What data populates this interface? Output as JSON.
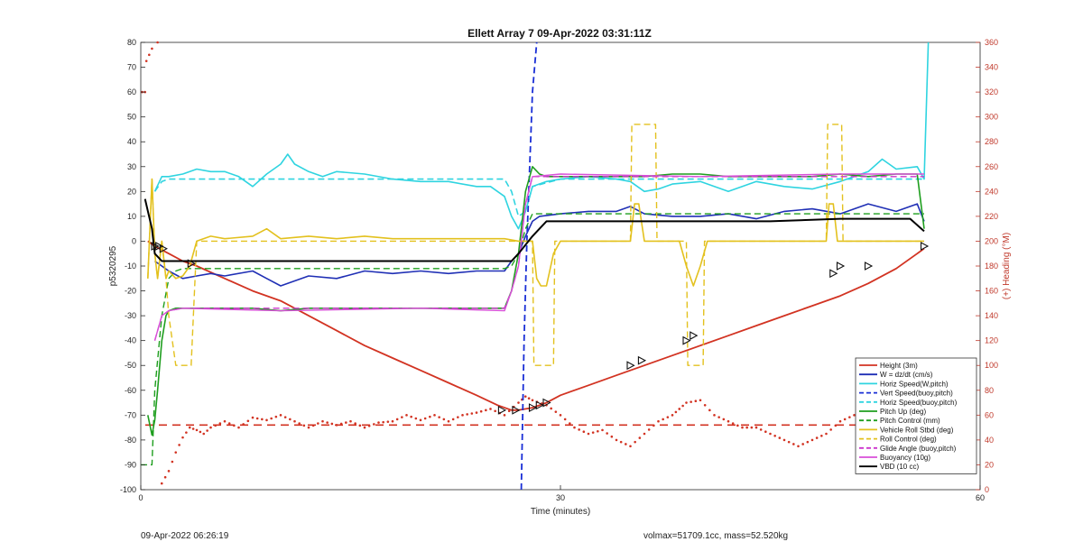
{
  "chart_data": {
    "type": "line",
    "title": "Ellett Array 7 09-Apr-2022 03:31:11Z",
    "xlabel": "Time (minutes)",
    "ylabel": "p5320295",
    "ylabel_right": "(+) Heading (°M)",
    "xlim": [
      0,
      60
    ],
    "ylim": [
      -100,
      80
    ],
    "ylim_right": [
      0,
      360
    ],
    "x_ticks": [
      0,
      30,
      60
    ],
    "y_ticks": [
      80,
      70,
      60,
      50,
      40,
      30,
      20,
      10,
      0,
      -10,
      -20,
      -30,
      -40,
      -50,
      -60,
      -70,
      -80,
      -90,
      -100
    ],
    "y_ticks_right": [
      360,
      340,
      320,
      300,
      280,
      260,
      240,
      220,
      200,
      180,
      160,
      140,
      120,
      100,
      80,
      60,
      40,
      20,
      0
    ],
    "grid": false,
    "legend_position": "bottom-right",
    "series": [
      {
        "name": "Height (3m)",
        "color": "#d23322",
        "style": "solid",
        "width": 1.8,
        "x": [
          0.5,
          1.0,
          2.0,
          3.0,
          4.0,
          6.0,
          8.0,
          10.0,
          12.0,
          14.0,
          16.0,
          18.0,
          20.0,
          22.0,
          24.0,
          25.5,
          26.5,
          27.0,
          28.0,
          29.0,
          30.0,
          32.0,
          34.0,
          36.0,
          38.0,
          40.0,
          42.0,
          44.0,
          46.0,
          48.0,
          50.0,
          52.0,
          54.0,
          56.0
        ],
        "y": [
          0,
          -2,
          -5,
          -8,
          -10,
          -15,
          -20,
          -24,
          -30,
          -36,
          -42,
          -47,
          -52,
          -57,
          -62,
          -66,
          -68,
          -68,
          -67,
          -65,
          -62,
          -58,
          -54,
          -50,
          -46,
          -42,
          -38,
          -34,
          -30,
          -26,
          -22,
          -17,
          -11,
          -3
        ]
      },
      {
        "name": "W = dz/dt (cm/s)",
        "color": "#1f2fb5",
        "style": "solid",
        "width": 1.6,
        "x": [
          1.0,
          1.5,
          2.0,
          3.0,
          4.0,
          5.0,
          6.0,
          8.0,
          9.0,
          10.0,
          12.0,
          14.0,
          16.0,
          18.0,
          20.0,
          22.0,
          24.0,
          26.0,
          26.5,
          27.0,
          27.5,
          28.0,
          28.5,
          30.0,
          32.0,
          34.0,
          35.0,
          36.0,
          38.0,
          40.0,
          42.0,
          44.0,
          46.0,
          48.0,
          50.0,
          52.0,
          54.0,
          55.5,
          56.0
        ],
        "y": [
          -8,
          -10,
          -12,
          -15,
          -14,
          -13,
          -14,
          -12,
          -15,
          -18,
          -14,
          -15,
          -12,
          -13,
          -12,
          -13,
          -12,
          -12,
          -8,
          -5,
          2,
          8,
          10,
          11,
          12,
          12,
          14,
          11,
          10,
          10,
          11,
          9,
          12,
          13,
          11,
          15,
          12,
          15,
          8
        ]
      },
      {
        "name": "Horiz Speed(W,pitch)",
        "color": "#2fd4e0",
        "style": "solid",
        "width": 1.6,
        "x": [
          1.0,
          1.5,
          2.0,
          3.0,
          4.0,
          5.0,
          6.0,
          7.0,
          8.0,
          9.0,
          10.0,
          10.5,
          11.0,
          12.0,
          13.0,
          14.0,
          16.0,
          18.0,
          20.0,
          22.0,
          24.0,
          25.0,
          26.0,
          26.5,
          27.0,
          27.5,
          28.0,
          29.0,
          30.0,
          32.0,
          34.0,
          35.0,
          36.0,
          37.0,
          38.0,
          40.0,
          42.0,
          44.0,
          46.0,
          48.0,
          50.0,
          52.0,
          53.0,
          54.0,
          55.5,
          56.0,
          56.3
        ],
        "y": [
          20,
          26,
          26,
          27,
          29,
          28,
          28,
          26,
          22,
          27,
          31,
          35,
          31,
          28,
          26,
          28,
          27,
          25,
          24,
          24,
          22,
          22,
          18,
          10,
          5,
          12,
          22,
          24,
          25,
          26,
          25,
          24,
          20,
          21,
          23,
          24,
          20,
          24,
          22,
          21,
          24,
          28,
          33,
          29,
          30,
          25,
          80
        ]
      },
      {
        "name": "Vert Speed(buoy,pitch)",
        "color": "#1a2fd6",
        "style": "dashed",
        "width": 1.8,
        "x": [
          27.2,
          27.4,
          27.6,
          27.8,
          28.0,
          28.3
        ],
        "y": [
          -100,
          -40,
          0,
          30,
          60,
          80
        ]
      },
      {
        "name": "Horiz Speed(buoy,pitch)",
        "color": "#2fd4e0",
        "style": "dashed",
        "width": 1.6,
        "x": [
          1.0,
          1.5,
          2.0,
          3.0,
          10.0,
          20.0,
          26.0,
          26.5,
          27.0,
          27.5,
          28.0,
          30.0,
          40.0,
          50.0,
          56.0
        ],
        "y": [
          20,
          24,
          25,
          25,
          25,
          25,
          25,
          20,
          10,
          12,
          22,
          25,
          25,
          25,
          25
        ]
      },
      {
        "name": "Pitch Up (deg)",
        "color": "#1e9e1e",
        "style": "solid",
        "width": 1.6,
        "x": [
          0.5,
          0.8,
          1.0,
          1.2,
          1.5,
          1.8,
          2.0,
          2.5,
          3.0,
          4.0,
          6.0,
          8.0,
          10.0,
          12.0,
          14.0,
          16.0,
          18.0,
          20.0,
          22.0,
          24.0,
          26.0,
          26.5,
          27.0,
          27.5,
          28.0,
          28.5,
          29.0,
          30.0,
          32.0,
          34.0,
          36.0,
          38.0,
          40.0,
          42.0,
          44.0,
          46.0,
          48.0,
          50.0,
          52.0,
          54.0,
          55.5,
          56.0
        ],
        "y": [
          -70,
          -78,
          -72,
          -60,
          -40,
          -30,
          -28,
          -27,
          -27,
          -27,
          -27,
          -27,
          -28,
          -27,
          -27,
          -27,
          -27,
          -27,
          -27,
          -27,
          -27,
          -20,
          -5,
          20,
          30,
          27,
          26,
          26,
          26,
          26,
          26,
          27,
          27,
          26,
          26,
          26,
          26,
          27,
          26,
          27,
          27,
          5
        ]
      },
      {
        "name": "Pitch Control (mm)",
        "color": "#1e9e1e",
        "style": "dashed",
        "width": 1.4,
        "x": [
          0.0,
          0.8,
          1.0,
          1.5,
          2.0,
          2.5,
          3.0,
          10.0,
          20.0,
          26.0,
          26.5,
          27.0,
          27.5,
          28.0,
          30.0,
          40.0,
          50.0,
          56.0
        ],
        "y": [
          -90,
          -90,
          -60,
          -30,
          -15,
          -12,
          -11,
          -11,
          -11,
          -11,
          -10,
          -5,
          5,
          11,
          11,
          11,
          11,
          11
        ]
      },
      {
        "name": "Vehicle Roll Stbd (deg)",
        "color": "#e3c11e",
        "style": "solid",
        "width": 1.6,
        "x": [
          0.5,
          0.8,
          1.0,
          1.2,
          1.5,
          1.8,
          2.0,
          2.5,
          3.0,
          3.5,
          4.0,
          5.0,
          6.0,
          8.0,
          9.0,
          10.0,
          12.0,
          14.0,
          16.0,
          18.0,
          20.0,
          22.0,
          24.0,
          26.0,
          27.0,
          28.0,
          28.3,
          28.6,
          29.0,
          29.5,
          30.0,
          34.0,
          35.0,
          35.3,
          35.6,
          36.0,
          36.5,
          38.0,
          38.5,
          39.0,
          39.5,
          40.0,
          40.5,
          44.0,
          49.0,
          49.2,
          49.5,
          49.8,
          50.2,
          51.0,
          54.0,
          56.0
        ],
        "y": [
          -15,
          25,
          -5,
          -15,
          0,
          -15,
          -12,
          -15,
          -14,
          -10,
          0,
          2,
          1,
          2,
          5,
          1,
          2,
          1,
          2,
          1,
          1,
          1,
          1,
          1,
          0,
          0,
          -15,
          -18,
          -18,
          -5,
          0,
          0,
          0,
          15,
          15,
          0,
          0,
          0,
          0,
          -10,
          -18,
          -10,
          0,
          0,
          0,
          15,
          15,
          0,
          0,
          0,
          0,
          0
        ]
      },
      {
        "name": "Roll Control (deg)",
        "color": "#e3c11e",
        "style": "dashed",
        "width": 1.4,
        "x": [
          0.5,
          0.8,
          1.0,
          1.2,
          1.5,
          1.8,
          2.0,
          2.5,
          3.0,
          3.5,
          3.6,
          4.0,
          4.1,
          10.0,
          20.0,
          26.0,
          28.0,
          28.1,
          29.5,
          29.6,
          30.0,
          35.0,
          35.1,
          36.8,
          36.9,
          38.0,
          39.0,
          39.1,
          40.2,
          40.3,
          49.0,
          49.1,
          50.1,
          50.2,
          54.0,
          56.0
        ],
        "y": [
          -15,
          25,
          -5,
          -15,
          0,
          -15,
          -30,
          -50,
          -50,
          -50,
          -50,
          0,
          0,
          0,
          0,
          0,
          0,
          -50,
          -50,
          0,
          0,
          0,
          47,
          47,
          0,
          0,
          0,
          -50,
          -50,
          0,
          0,
          47,
          47,
          0,
          0,
          0
        ]
      },
      {
        "name": "Glide Angle (buoy,pitch)",
        "color": "#cc33cc",
        "style": "dashed",
        "width": 1.4,
        "x": [
          1.0,
          1.5,
          2.0,
          3.0,
          10.0,
          20.0,
          26.0,
          26.5,
          27.0,
          27.5,
          28.0,
          30.0,
          40.0,
          50.0,
          56.0
        ],
        "y": [
          -40,
          -30,
          -28,
          -27,
          -27,
          -27,
          -27,
          -20,
          -10,
          15,
          26,
          26,
          26,
          26,
          26
        ]
      },
      {
        "name": "Buoyancy (10g)",
        "color": "#d84fd8",
        "style": "solid",
        "width": 1.4,
        "x": [
          1.0,
          1.5,
          2.0,
          3.0,
          10.0,
          20.0,
          26.0,
          26.5,
          27.0,
          27.5,
          28.0,
          30.0,
          40.0,
          50.0,
          56.0
        ],
        "y": [
          -40,
          -30,
          -28,
          -27,
          -28,
          -27,
          -28,
          -20,
          -10,
          15,
          26,
          27,
          26,
          27,
          27
        ]
      },
      {
        "name": "VBD (10 cc)",
        "color": "#000000",
        "style": "solid",
        "width": 2.0,
        "x": [
          0.3,
          0.8,
          1.0,
          1.5,
          2.0,
          3.0,
          10.0,
          20.0,
          26.0,
          26.5,
          27.0,
          28.0,
          29.0,
          30.0,
          35.0,
          40.0,
          45.0,
          50.0,
          55.0,
          56.0
        ],
        "y": [
          17,
          5,
          -5,
          -8,
          -8,
          -8,
          -8,
          -8,
          -8,
          -8,
          -5,
          2,
          8,
          8,
          8,
          8,
          8,
          9,
          9,
          4
        ]
      }
    ],
    "heading_series": {
      "name": "(+) Heading (°M)",
      "color": "#d23322",
      "style": "dotted",
      "x": [
        0.1,
        0.3,
        0.4,
        0.6,
        0.8,
        1.2,
        1.5,
        2.0,
        2.5,
        3.0,
        3.5,
        4.0,
        4.5,
        5.0,
        6.0,
        7.0,
        8.0,
        9.0,
        10.0,
        11.0,
        12.0,
        13.0,
        14.0,
        15.0,
        16.0,
        17.0,
        18.0,
        19.0,
        20.0,
        21.0,
        22.0,
        23.0,
        24.0,
        25.0,
        26.0,
        27.0,
        27.5,
        28.0,
        29.0,
        30.0,
        31.0,
        32.0,
        33.0,
        34.0,
        35.0,
        36.0,
        37.0,
        38.0,
        38.5,
        39.0,
        40.0,
        41.0,
        42.0,
        43.0,
        44.0,
        45.0,
        46.0,
        47.0,
        48.0,
        49.0,
        50.0,
        51.0,
        52.0,
        53.0,
        54.0,
        55.0
      ],
      "y": [
        320,
        320,
        345,
        350,
        355,
        360,
        5,
        15,
        30,
        42,
        50,
        48,
        45,
        50,
        55,
        50,
        58,
        56,
        60,
        55,
        50,
        55,
        52,
        55,
        50,
        54,
        55,
        60,
        56,
        60,
        55,
        60,
        62,
        65,
        60,
        70,
        75,
        72,
        68,
        60,
        50,
        45,
        48,
        40,
        35,
        45,
        55,
        60,
        65,
        70,
        72,
        60,
        55,
        50,
        50,
        45,
        40,
        35,
        40,
        45,
        55,
        60,
        55,
        50,
        55,
        60
      ]
    },
    "reference_line": {
      "name": "",
      "color": "#d23322",
      "style": "dashed",
      "y": -74
    },
    "annotations": {
      "marker": "triangle",
      "x": [
        1.0,
        1.3,
        1.6,
        3.6,
        25.8,
        26.8,
        28.0,
        28.5,
        29.0,
        35.0,
        35.8,
        39.0,
        39.5,
        49.5,
        50.0,
        52.0,
        56.0
      ],
      "y": [
        -2,
        -2,
        -3,
        -9,
        -68,
        -68,
        -67,
        -66,
        -65,
        -50,
        -48,
        -40,
        -38,
        -13,
        -10,
        -10,
        -2
      ]
    },
    "footer_left": "09-Apr-2022 06:26:19",
    "footer_right": "volmax=51709.1cc, mass=52.520kg"
  }
}
